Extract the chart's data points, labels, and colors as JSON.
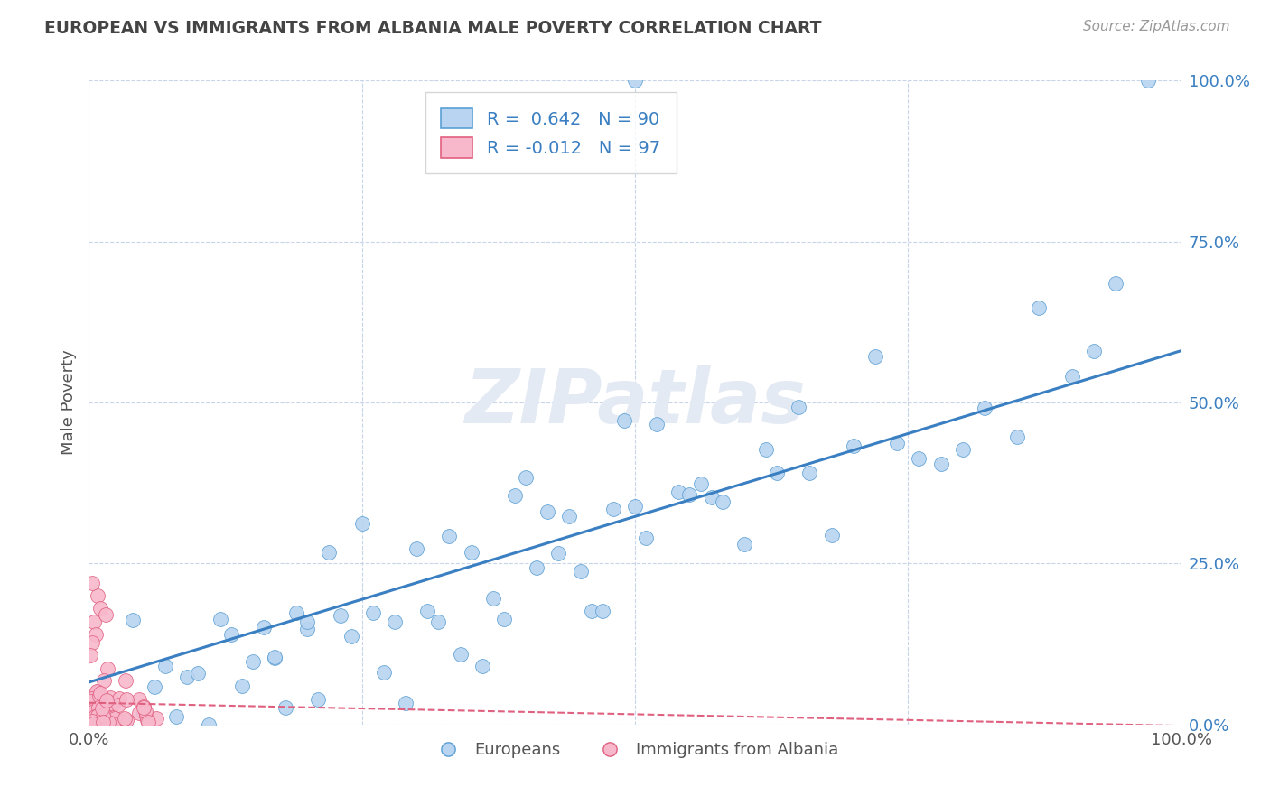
{
  "title": "EUROPEAN VS IMMIGRANTS FROM ALBANIA MALE POVERTY CORRELATION CHART",
  "source": "Source: ZipAtlas.com",
  "ylabel": "Male Poverty",
  "series": [
    {
      "name": "Europeans",
      "R": 0.642,
      "N": 90,
      "color": "#b8d4f0",
      "edge_color": "#5a9fd4",
      "trend_color": "#3a7fc1",
      "trend_dash": "solid"
    },
    {
      "name": "Immigrants from Albania",
      "R": -0.012,
      "N": 97,
      "color": "#f8b8cc",
      "edge_color": "#e06080",
      "trend_color": "#e06080",
      "trend_dash": "dashed"
    }
  ],
  "xlim": [
    0.0,
    1.0
  ],
  "ylim": [
    0.0,
    1.0
  ],
  "ytick_labels": [
    "0.0%",
    "25.0%",
    "50.0%",
    "75.0%",
    "100.0%"
  ],
  "ytick_vals": [
    0.0,
    0.25,
    0.5,
    0.75,
    1.0
  ],
  "background_color": "#ffffff",
  "grid_color": "#c8d4e8",
  "watermark_color": "#e4eaf4",
  "title_color": "#444444",
  "source_color": "#999999",
  "legend_text_color": "#3a7fc1",
  "axis_label_color": "#555555",
  "right_tick_color": "#3a7fc1"
}
